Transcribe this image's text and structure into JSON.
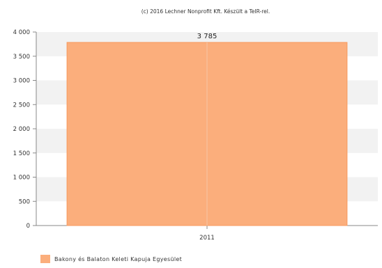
{
  "chart_data": {
    "type": "bar",
    "title": "(c) 2016 Lechner Nonprofit Kft. Készült a TeIR-rel.",
    "xlabel": "",
    "ylabel": "",
    "categories": [
      "2011"
    ],
    "series": [
      {
        "name": "Bakony és Balaton Keleti Kapuja Egyesület",
        "values": [
          3785
        ],
        "color": "#FBAE7C"
      }
    ],
    "data_labels": [
      "3 785"
    ],
    "ylim": [
      0,
      4000
    ],
    "yticks": [
      0,
      500,
      1000,
      1500,
      2000,
      2500,
      3000,
      3500,
      4000
    ],
    "ytick_labels": [
      "0",
      "500",
      "1 000",
      "1 500",
      "2 000",
      "2 500",
      "3 000",
      "3 500",
      "4 000"
    ],
    "grid": true,
    "legend_position": "bottom-left"
  }
}
